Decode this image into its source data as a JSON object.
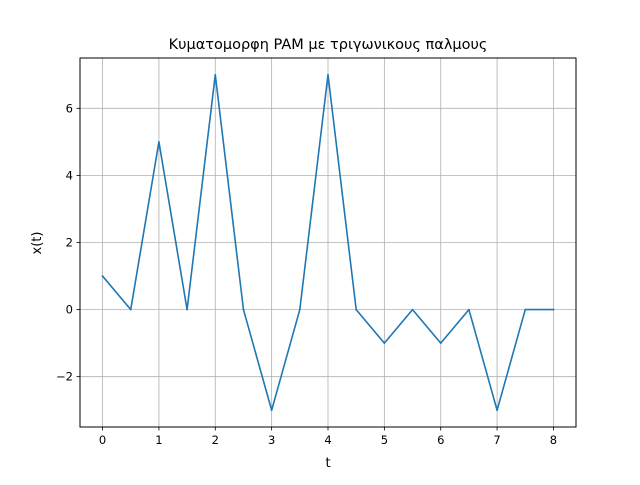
{
  "chart_data": {
    "type": "line",
    "title": "Κυματομορφη PAM με τριγωνικους παλμους",
    "xlabel": "t",
    "ylabel": "x(t)",
    "xlim": [
      -0.4,
      8.4
    ],
    "ylim": [
      -3.5,
      7.5
    ],
    "xticks": [
      0,
      1,
      2,
      3,
      4,
      5,
      6,
      7,
      8
    ],
    "yticks": [
      -2,
      0,
      2,
      4,
      6
    ],
    "ytick_labels": [
      "−2",
      "0",
      "2",
      "4",
      "6"
    ],
    "grid": true,
    "series": [
      {
        "color": "#1f77b4",
        "x": [
          0,
          0.5,
          1,
          1.5,
          2,
          2.5,
          3,
          3.5,
          4,
          4.5,
          5,
          5.5,
          6,
          6.5,
          7,
          7.5,
          8
        ],
        "y": [
          1,
          0,
          5,
          0,
          7,
          0,
          -3,
          0,
          7,
          0,
          -1,
          0,
          -1,
          0,
          -3,
          0,
          0
        ]
      }
    ]
  }
}
